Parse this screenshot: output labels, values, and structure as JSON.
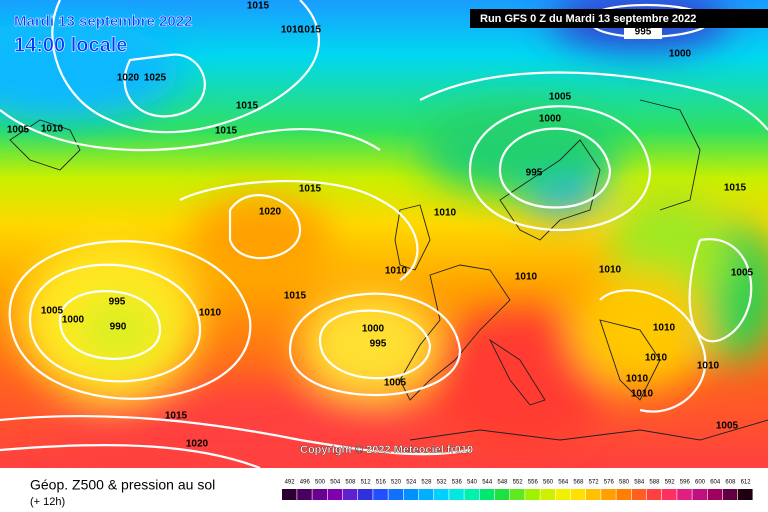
{
  "title": {
    "date": "Mardi 13 septembre 2022",
    "time": "14:00 locale"
  },
  "run": "Run GFS 0 Z du Mardi 13 septembre 2022",
  "copyright": "Copyright © 2022 Meteociel.fr010",
  "footer": {
    "title": "Géop. Z500 & pression au sol",
    "lead": "(+ 12h)"
  },
  "legend": {
    "levels": [
      492,
      496,
      500,
      504,
      508,
      512,
      516,
      520,
      524,
      528,
      532,
      536,
      540,
      544,
      548,
      552,
      556,
      560,
      564,
      568,
      572,
      576,
      580,
      584,
      588,
      592,
      596,
      600,
      604,
      608,
      612
    ]
  },
  "isobar_labels": [
    "1015",
    "1010",
    "1015",
    "1020",
    "1025",
    "1005",
    "1010",
    "1015",
    "1015",
    "1005",
    "1000",
    "995",
    "1000",
    "995",
    "1015",
    "1020",
    "1010",
    "1015",
    "1010",
    "1010",
    "1010",
    "1005",
    "995",
    "1005",
    "1000",
    "990",
    "1010",
    "1015",
    "1000",
    "995",
    "1010",
    "1010",
    "1010",
    "1010",
    "1010",
    "1005",
    "1015",
    "1020",
    "1005"
  ]
}
